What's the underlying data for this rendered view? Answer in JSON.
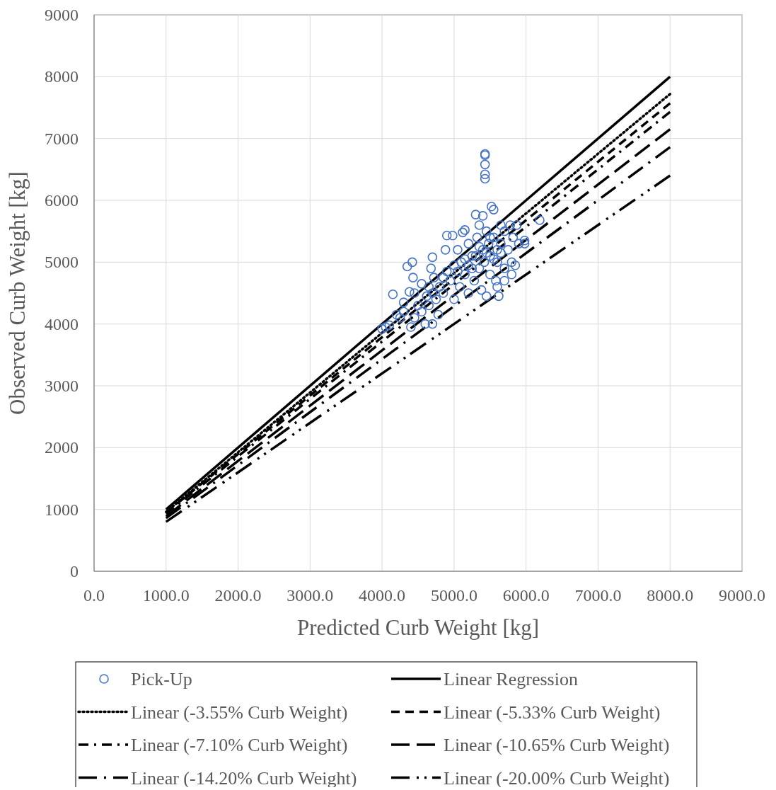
{
  "chart_data": {
    "type": "scatter",
    "xlabel": "Predicted Curb Weight [kg]",
    "ylabel": "Observed Curb Weight [kg]",
    "xlim": [
      0,
      9000
    ],
    "ylim": [
      0,
      9000
    ],
    "xticks": [
      {
        "value": 0,
        "label": "0.0"
      },
      {
        "value": 1000,
        "label": "1000.0"
      },
      {
        "value": 2000,
        "label": "2000.0"
      },
      {
        "value": 3000,
        "label": "3000.0"
      },
      {
        "value": 4000,
        "label": "4000.0"
      },
      {
        "value": 5000,
        "label": "5000.0"
      },
      {
        "value": 6000,
        "label": "6000.0"
      },
      {
        "value": 7000,
        "label": "7000.0"
      },
      {
        "value": 8000,
        "label": "8000.0"
      },
      {
        "value": 9000,
        "label": "9000.0"
      }
    ],
    "yticks": [
      0,
      1000,
      2000,
      3000,
      4000,
      5000,
      6000,
      7000,
      8000,
      9000
    ],
    "grid": true,
    "legend": "bottom",
    "series": [
      {
        "name": "Pick-Up",
        "marker": "circle",
        "color": "#4472c4",
        "x": [
          4000,
          4050,
          4100,
          4150,
          4200,
          4250,
          4300,
          4350,
          4380,
          4400,
          4420,
          4430,
          4450,
          4500,
          4550,
          4600,
          4620,
          4650,
          4680,
          4700,
          4700,
          4720,
          4750,
          4780,
          4800,
          4850,
          4880,
          4900,
          4900,
          4950,
          4980,
          5000,
          5000,
          5050,
          5080,
          5100,
          5120,
          5150,
          5150,
          5200,
          5200,
          5250,
          5280,
          5300,
          5320,
          5350,
          5350,
          5380,
          5400,
          5400,
          5420,
          5450,
          5450,
          5480,
          5500,
          5500,
          5520,
          5550,
          5550,
          5580,
          5600,
          5600,
          5620,
          5650,
          5650,
          5700,
          5700,
          5750,
          5780,
          5800,
          5800,
          5820,
          5850,
          5870,
          5900,
          5980,
          5980,
          4300,
          4450,
          4550,
          4650,
          4700,
          4850,
          5050,
          5150,
          5250,
          5350,
          5450,
          5550,
          5650,
          5500,
          5300,
          5200,
          5600,
          5700,
          5430,
          5430,
          5430,
          5430,
          5430,
          6190
        ],
        "values": [
          3920,
          3950,
          3980,
          4480,
          4150,
          4100,
          4200,
          4930,
          4520,
          3950,
          5000,
          4750,
          4500,
          4300,
          4200,
          4000,
          4450,
          4600,
          4900,
          5080,
          4000,
          4750,
          4400,
          4150,
          4600,
          4500,
          5200,
          5430,
          4850,
          4700,
          5430,
          4950,
          4400,
          5200,
          4600,
          5000,
          5480,
          5520,
          4800,
          4500,
          5300,
          5100,
          4700,
          5770,
          5400,
          4900,
          5600,
          4550,
          5200,
          5750,
          5000,
          4450,
          5500,
          5300,
          4800,
          5100,
          5900,
          5850,
          5400,
          4700,
          5200,
          5000,
          4450,
          5600,
          5300,
          4900,
          5500,
          5200,
          5600,
          4800,
          5000,
          5400,
          4950,
          5600,
          5300,
          5300,
          5350,
          4350,
          4100,
          4650,
          4300,
          4500,
          4750,
          4850,
          5050,
          4900,
          5250,
          5150,
          5050,
          5150,
          5400,
          5100,
          4950,
          4600,
          4700,
          6750,
          6730,
          6580,
          6420,
          6350,
          5680
        ]
      },
      {
        "name": "Linear Regression",
        "type": "line",
        "line_style": "solid",
        "marker": "none",
        "color": "#000000",
        "x": [
          1000,
          8000
        ],
        "values": [
          1000,
          8000
        ]
      },
      {
        "name": "Linear (-3.55% Curb Weight)",
        "type": "line",
        "line_style": "dotted",
        "marker": "none",
        "color": "#000000",
        "x": [
          1000,
          8000
        ],
        "values": [
          960,
          7720
        ]
      },
      {
        "name": "Linear (-5.33% Curb Weight)",
        "type": "line",
        "line_style": "dashed",
        "marker": "none",
        "color": "#000000",
        "x": [
          1000,
          8000
        ],
        "values": [
          950,
          7570
        ]
      },
      {
        "name": "Linear (-7.10% Curb Weight)",
        "type": "line",
        "line_style": "dashdot",
        "marker": "none",
        "color": "#000000",
        "x": [
          1000,
          8000
        ],
        "values": [
          930,
          7430
        ]
      },
      {
        "name": "Linear (-10.65% Curb Weight)",
        "type": "line",
        "line_style": "longdash",
        "marker": "none",
        "color": "#000000",
        "x": [
          1000,
          8000
        ],
        "values": [
          890,
          7150
        ]
      },
      {
        "name": "Linear (-14.20% Curb Weight)",
        "type": "line",
        "line_style": "longdashdot",
        "marker": "none",
        "color": "#000000",
        "x": [
          1000,
          8000
        ],
        "values": [
          860,
          6860
        ]
      },
      {
        "name": "Linear (-20.00% Curb Weight)",
        "type": "line",
        "line_style": "longdashdotdot",
        "marker": "none",
        "color": "#000000",
        "x": [
          1000,
          8000
        ],
        "values": [
          800,
          6400
        ]
      }
    ]
  }
}
